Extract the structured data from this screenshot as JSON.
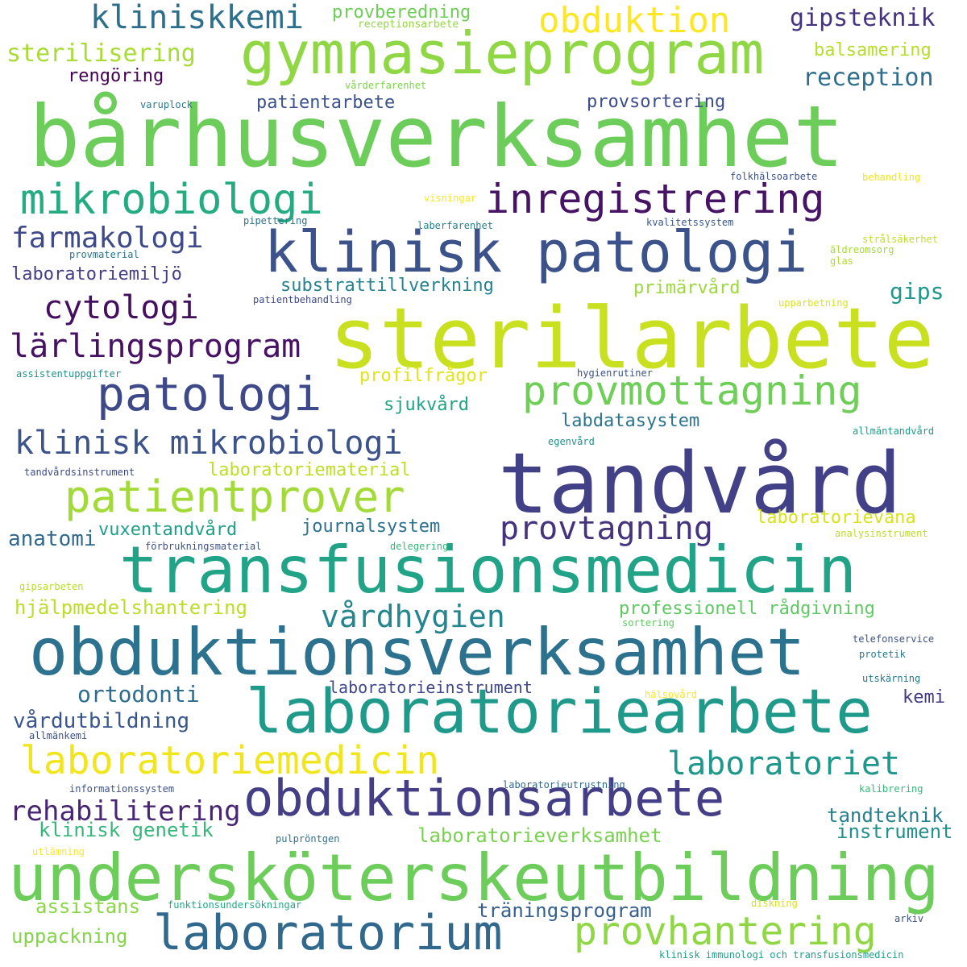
{
  "words": [
    {
      "text": "bårhusverksamhet",
      "color": "#6ccd5a"
    },
    {
      "text": "sterilarbete",
      "color": "#c8e020"
    },
    {
      "text": "tandvård",
      "color": "#424086"
    },
    {
      "text": "transfusionsmedicin",
      "color": "#20a386"
    },
    {
      "text": "obduktionsverksamhet",
      "color": "#2c728e"
    },
    {
      "text": "undersköterskeutbildning",
      "color": "#6ccd5a"
    },
    {
      "text": "laboratoriearbete",
      "color": "#1f9a8a"
    },
    {
      "text": "gymnasieprogram",
      "color": "#8fd744"
    },
    {
      "text": "klinisk patologi",
      "color": "#3b528b"
    },
    {
      "text": "obduktionsarbete",
      "color": "#433e85"
    },
    {
      "text": "laboratorium",
      "color": "#31688e"
    },
    {
      "text": "inregistrering",
      "color": "#471365"
    },
    {
      "text": "mikrobiologi",
      "color": "#25ab82"
    },
    {
      "text": "patologi",
      "color": "#3e4989"
    },
    {
      "text": "provmottagning",
      "color": "#6ece58"
    },
    {
      "text": "laboratoriemedicin",
      "color": "#f1e51d"
    },
    {
      "text": "patientprover",
      "color": "#a2da37"
    },
    {
      "text": "provhantering",
      "color": "#8fd744"
    },
    {
      "text": "klinisk mikrobiologi",
      "color": "#3b528b"
    },
    {
      "text": "obduktion",
      "color": "#fde725"
    },
    {
      "text": "kliniskkemi",
      "color": "#2d708e"
    },
    {
      "text": "laboratoriet",
      "color": "#1f988b"
    },
    {
      "text": "provtagning",
      "color": "#46337e"
    },
    {
      "text": "lärlingsprogram",
      "color": "#471164"
    },
    {
      "text": "cytologi",
      "color": "#440f5e"
    },
    {
      "text": "farmakologi",
      "color": "#3e4a89"
    },
    {
      "text": "rehabilitering",
      "color": "#482475"
    },
    {
      "text": "vårdhygien",
      "color": "#25858e"
    },
    {
      "text": "sterilisering",
      "color": "#a8db34"
    },
    {
      "text": "gipsteknik",
      "color": "#46337f"
    },
    {
      "text": "reception",
      "color": "#2e6f8e"
    },
    {
      "text": "ortodonti",
      "color": "#2e6d8e"
    },
    {
      "text": "vårdutbildning",
      "color": "#39568c"
    },
    {
      "text": "tandteknik",
      "color": "#277f8e"
    },
    {
      "text": "instrument",
      "color": "#21918c"
    },
    {
      "text": "hjälpmedelshantering",
      "color": "#bade28"
    },
    {
      "text": "professionell rådgivning",
      "color": "#5ec962"
    },
    {
      "text": "laboratorieverksamhet",
      "color": "#7ad151"
    },
    {
      "text": "klinisk genetik",
      "color": "#35b779"
    },
    {
      "text": "träningsprogram",
      "color": "#355f8d"
    },
    {
      "text": "uppackning",
      "color": "#84d44b"
    },
    {
      "text": "assistans",
      "color": "#8bd646"
    },
    {
      "text": "anatomi",
      "color": "#31688e"
    },
    {
      "text": "vuxentandvård",
      "color": "#1f9f88"
    },
    {
      "text": "journalsystem",
      "color": "#2d718e"
    },
    {
      "text": "laboratorievana",
      "color": "#d8e219"
    },
    {
      "text": "substrattillverkning",
      "color": "#26828e"
    },
    {
      "text": "laboratoriemiljö",
      "color": "#423f85"
    },
    {
      "text": "gips",
      "color": "#1f978b"
    },
    {
      "text": "primärvård",
      "color": "#9bd93c"
    },
    {
      "text": "profilfrågor",
      "color": "#e2e418"
    },
    {
      "text": "sjukvård",
      "color": "#20a486"
    },
    {
      "text": "labdatasystem",
      "color": "#2c738e"
    },
    {
      "text": "laboratoriematerial",
      "color": "#bddf26"
    },
    {
      "text": "laboratorieinstrument",
      "color": "#3f4889"
    },
    {
      "text": "kemi",
      "color": "#443a83"
    },
    {
      "text": "rengöring",
      "color": "#440154"
    },
    {
      "text": "patientarbete",
      "color": "#3b528b"
    },
    {
      "text": "provsortering",
      "color": "#3d4d8a"
    },
    {
      "text": "provberedning",
      "color": "#6ece58"
    },
    {
      "text": "balsamering",
      "color": "#b5de2b"
    },
    {
      "text": "receptionsarbete",
      "color": "#93d741"
    },
    {
      "text": "vårderfarenhet",
      "color": "#7fd34e"
    },
    {
      "text": "varuplock",
      "color": "#2a788e"
    },
    {
      "text": "folkhälsoarbete",
      "color": "#3b528b"
    },
    {
      "text": "behandling",
      "color": "#f1e51d"
    },
    {
      "text": "visningar",
      "color": "#fde725"
    },
    {
      "text": "pipettering",
      "color": "#2c728e"
    },
    {
      "text": "laberfarenhet",
      "color": "#26828e"
    },
    {
      "text": "kvalitetssystem",
      "color": "#39568c"
    },
    {
      "text": "strålsäkerhet",
      "color": "#c2df23"
    },
    {
      "text": "äldreomsorg",
      "color": "#a5db36"
    },
    {
      "text": "glas",
      "color": "#b2dd2d"
    },
    {
      "text": "provmaterial",
      "color": "#2c738e"
    },
    {
      "text": "patientbehandling",
      "color": "#3e4a89"
    },
    {
      "text": "upparbetning",
      "color": "#dae319"
    },
    {
      "text": "assistentuppgifter",
      "color": "#21918c"
    },
    {
      "text": "hygienrutiner",
      "color": "#3b528b"
    },
    {
      "text": "egenvård",
      "color": "#21918c"
    },
    {
      "text": "allmäntandvård",
      "color": "#1f9e89"
    },
    {
      "text": "tandvårdsinstrument",
      "color": "#3e4989"
    },
    {
      "text": "analysinstrument",
      "color": "#bade28"
    },
    {
      "text": "förbrukningsmaterial",
      "color": "#3b528b"
    },
    {
      "text": "delegering",
      "color": "#35b779"
    },
    {
      "text": "gipsarbeten",
      "color": "#b5de2b"
    },
    {
      "text": "sortering",
      "color": "#5ec962"
    },
    {
      "text": "telefonservice",
      "color": "#3b528b"
    },
    {
      "text": "protetik",
      "color": "#2a788e"
    },
    {
      "text": "utskärning",
      "color": "#2a788e"
    },
    {
      "text": "hälsovård",
      "color": "#fde725"
    },
    {
      "text": "allmänkemi",
      "color": "#3b528b"
    },
    {
      "text": "informationssystem",
      "color": "#3b528b"
    },
    {
      "text": "laboratorieutrustning",
      "color": "#31688e"
    },
    {
      "text": "kalibrering",
      "color": "#35b779"
    },
    {
      "text": "pulpröntgen",
      "color": "#2c728e"
    },
    {
      "text": "utlämning",
      "color": "#fde725"
    },
    {
      "text": "funktionsundersökningar",
      "color": "#22a884"
    },
    {
      "text": "diskning",
      "color": "#d8e219"
    },
    {
      "text": "arkiv",
      "color": "#3b528b"
    },
    {
      "text": "klinisk immunologi och transfusionsmedicin",
      "color": "#1f9e89"
    }
  ]
}
